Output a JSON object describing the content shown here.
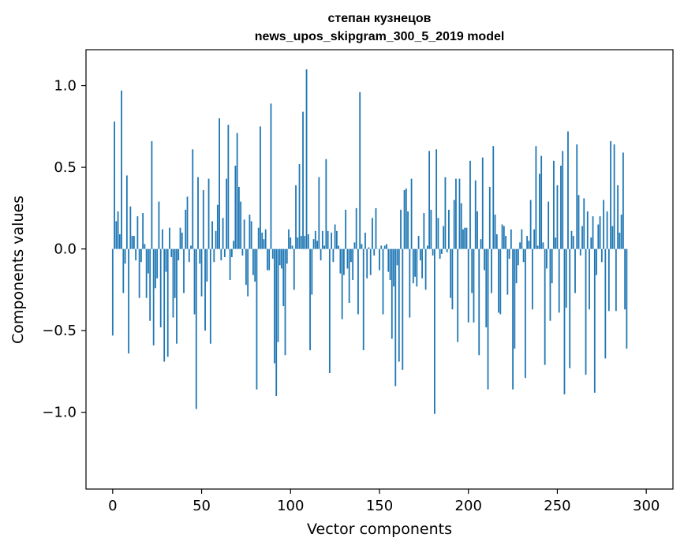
{
  "chart_data": {
    "type": "bar",
    "title_line1": "степан кузнецов",
    "title_line2": "news_upos_skipgram_300_5_2019 model",
    "xlabel": "Vector components",
    "ylabel": "Components values",
    "xlim": [
      -15,
      315
    ],
    "ylim": [
      -1.47,
      1.22
    ],
    "xticks": [
      0,
      50,
      100,
      150,
      200,
      250,
      300
    ],
    "xtick_labels": [
      "0",
      "50",
      "100",
      "150",
      "200",
      "250",
      "300"
    ],
    "yticks": [
      -1.0,
      -0.5,
      0.0,
      0.5,
      1.0
    ],
    "ytick_labels": [
      "−1.0",
      "−0.5",
      "0.0",
      "0.5",
      "1.0"
    ],
    "bar_color": "#1f77b4",
    "values": [
      -0.53,
      0.78,
      0.17,
      0.23,
      0.09,
      0.97,
      -0.27,
      -0.09,
      0.45,
      -0.64,
      0.26,
      0.08,
      0.08,
      -0.07,
      0.2,
      -0.3,
      -0.08,
      0.22,
      0.03,
      -0.3,
      -0.15,
      -0.44,
      0.66,
      -0.59,
      -0.24,
      -0.18,
      0.29,
      -0.48,
      0.12,
      -0.69,
      -0.14,
      -0.66,
      0.13,
      -0.05,
      -0.42,
      -0.3,
      -0.58,
      -0.07,
      0.13,
      0.1,
      -0.27,
      0.24,
      0.32,
      -0.08,
      0.02,
      0.61,
      -0.4,
      -0.98,
      0.44,
      -0.09,
      -0.29,
      0.36,
      -0.5,
      -0.2,
      0.43,
      -0.58,
      0.17,
      -0.08,
      0.11,
      0.27,
      0.8,
      -0.07,
      0.19,
      -0.05,
      0.43,
      0.76,
      -0.19,
      -0.05,
      0.05,
      0.51,
      0.71,
      0.38,
      0.29,
      -0.04,
      0.18,
      -0.22,
      -0.29,
      0.21,
      0.17,
      -0.16,
      -0.2,
      -0.86,
      0.13,
      0.75,
      0.1,
      0.06,
      0.12,
      -0.13,
      -0.13,
      0.89,
      -0.06,
      -0.7,
      -0.9,
      -0.57,
      -0.1,
      -0.12,
      -0.35,
      -0.65,
      -0.09,
      0.12,
      0.07,
      0.02,
      -0.25,
      0.39,
      0.07,
      0.52,
      0.08,
      0.84,
      0.08,
      1.1,
      0.09,
      -0.62,
      -0.28,
      0.06,
      0.11,
      0.05,
      0.44,
      -0.07,
      0.11,
      0.02,
      0.55,
      0.11,
      -0.76,
      0.1,
      -0.08,
      0.15,
      0.11,
      0.02,
      -0.15,
      -0.43,
      -0.16,
      0.24,
      -0.12,
      -0.33,
      -0.08,
      -0.19,
      0.04,
      0.25,
      -0.4,
      0.96,
      0.03,
      -0.62,
      0.1,
      -0.18,
      0.01,
      -0.16,
      0.19,
      -0.04,
      0.25,
      0.0,
      -0.13,
      0.02,
      -0.4,
      0.02,
      0.03,
      -0.14,
      -0.19,
      -0.55,
      -0.23,
      -0.84,
      -0.1,
      -0.69,
      0.24,
      -0.74,
      0.36,
      0.37,
      0.23,
      -0.42,
      0.43,
      -0.21,
      -0.17,
      -0.23,
      0.08,
      -0.07,
      -0.18,
      0.22,
      -0.25,
      0.02,
      0.6,
      0.24,
      -0.04,
      -1.01,
      0.61,
      0.19,
      -0.06,
      -0.03,
      0.14,
      0.44,
      -0.02,
      0.24,
      -0.3,
      -0.37,
      0.3,
      0.43,
      -0.57,
      0.43,
      0.28,
      0.12,
      0.13,
      0.13,
      -0.45,
      0.54,
      -0.27,
      -0.45,
      0.42,
      0.23,
      -0.65,
      0.06,
      0.56,
      -0.13,
      -0.48,
      -0.86,
      0.38,
      -0.27,
      0.63,
      0.21,
      0.09,
      -0.39,
      -0.4,
      0.15,
      0.14,
      0.08,
      -0.28,
      -0.06,
      0.12,
      -0.86,
      -0.61,
      -0.21,
      -0.1,
      0.04,
      0.12,
      -0.08,
      -0.79,
      0.08,
      0.05,
      0.3,
      -0.37,
      0.12,
      0.63,
      0.02,
      0.46,
      0.57,
      0.04,
      -0.71,
      -0.12,
      0.29,
      -0.44,
      -0.21,
      0.54,
      0.07,
      0.39,
      -0.39,
      0.51,
      0.6,
      -0.89,
      -0.36,
      0.72,
      -0.73,
      0.11,
      0.08,
      -0.27,
      0.64,
      0.33,
      -0.04,
      0.14,
      0.31,
      -0.77,
      0.23,
      -0.37,
      0.07,
      0.2,
      -0.88,
      -0.16,
      0.15,
      0.2,
      -0.08,
      0.3,
      -0.67,
      0.23,
      -0.38,
      0.66,
      0.14,
      0.64,
      -0.38,
      0.39,
      0.1,
      0.21,
      0.59,
      -0.37,
      -0.61
    ]
  }
}
